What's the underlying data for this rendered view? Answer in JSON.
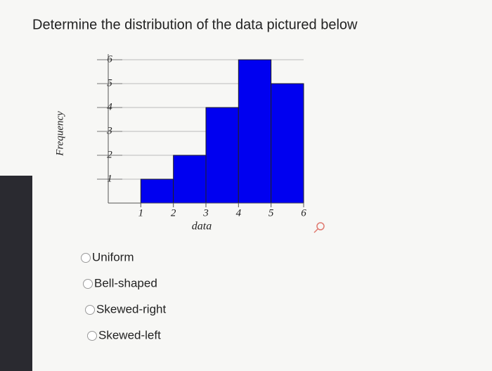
{
  "question": "Determine the distribution of the data pictured below",
  "chart_data": {
    "type": "histogram",
    "bins": [
      1,
      2,
      3,
      4,
      5,
      6
    ],
    "values": [
      1,
      2,
      4,
      6,
      5
    ],
    "color": "#0000f0",
    "xlabel": "data",
    "ylabel": "Frequency",
    "xlim": [
      0,
      6
    ],
    "xticks": [
      1,
      2,
      3,
      4,
      5,
      6
    ],
    "ylim": [
      0,
      6
    ],
    "yticks": [
      1,
      2,
      3,
      4,
      5,
      6
    ],
    "grid": true
  },
  "options": [
    "Uniform",
    "Bell-shaped",
    "Skewed-right",
    "Skewed-left"
  ]
}
